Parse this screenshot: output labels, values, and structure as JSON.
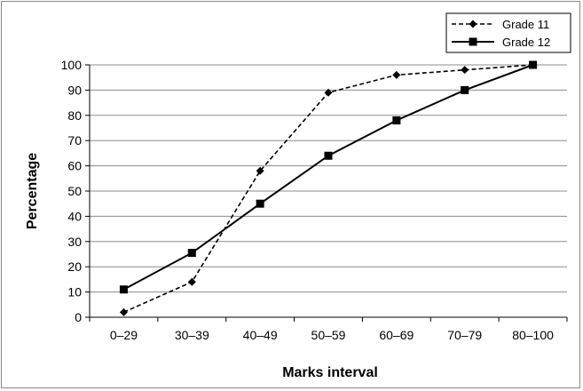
{
  "chart_data": {
    "type": "line",
    "title": "",
    "xlabel": "Marks interval",
    "ylabel": "Percentage",
    "categories": [
      "0–29",
      "30–39",
      "40–49",
      "50–59",
      "60–69",
      "70–79",
      "80–100"
    ],
    "ylim": [
      0,
      100
    ],
    "yticks": [
      0,
      10,
      20,
      30,
      40,
      50,
      60,
      70,
      80,
      90,
      100
    ],
    "grid": true,
    "legend_position": "top-right",
    "series": [
      {
        "name": "Grade 11",
        "style": "dashed",
        "marker": "diamond",
        "color": "#000000",
        "values": [
          2,
          14,
          58,
          89,
          96,
          98,
          100
        ]
      },
      {
        "name": "Grade 12",
        "style": "solid",
        "marker": "square",
        "color": "#000000",
        "values": [
          11,
          25.5,
          45,
          64,
          78,
          90,
          100
        ]
      }
    ]
  }
}
